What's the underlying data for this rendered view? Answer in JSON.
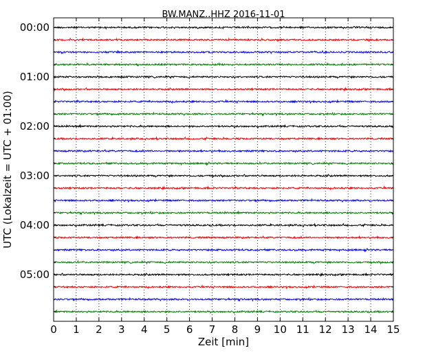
{
  "chart_data": {
    "type": "line",
    "title": "BW.MANZ..HHZ 2016-11-01",
    "xlabel": "Zeit  [min]",
    "ylabel": "UTC (Lokalzeit = UTC + 01:00)",
    "xlim": [
      0,
      15
    ],
    "x_ticks": [
      "0",
      "1",
      "2",
      "3",
      "4",
      "5",
      "6",
      "7",
      "8",
      "9",
      "10",
      "11",
      "12",
      "13",
      "14",
      "15"
    ],
    "y_tick_labels": [
      "00:00",
      "01:00",
      "02:00",
      "03:00",
      "04:00",
      "05:00"
    ],
    "grid": "vertical dotted",
    "row_interval_minutes": 15,
    "rows": 24,
    "colors": [
      "#000000",
      "#ff0000",
      "#0000ff",
      "#008000"
    ]
  }
}
